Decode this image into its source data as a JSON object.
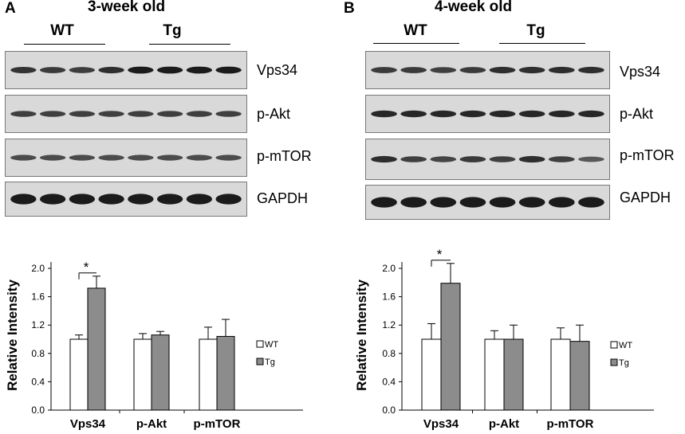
{
  "panels": [
    {
      "letter": "A",
      "title": "3-week old",
      "groups": [
        "WT",
        "Tg"
      ],
      "blots": [
        "Vps34",
        "p-Akt",
        "p-mTOR",
        "GAPDH"
      ],
      "chart": {
        "ylabel": "Relative Intensity",
        "star": "*"
      }
    },
    {
      "letter": "B",
      "title": "4-week old",
      "groups": [
        "WT",
        "Tg"
      ],
      "blots": [
        "Vps34",
        "p-Akt",
        "p-mTOR",
        "GAPDH"
      ],
      "chart": {
        "ylabel": "Relative Intensity",
        "star": "*"
      }
    }
  ],
  "chart_data": [
    {
      "type": "bar",
      "categories": [
        "Vps34",
        "p-Akt",
        "p-mTOR"
      ],
      "series": [
        {
          "name": "WT",
          "values": [
            1.0,
            1.0,
            1.0
          ],
          "errors": [
            0.06,
            0.08,
            0.17
          ],
          "color": "#ffffff"
        },
        {
          "name": "Tg",
          "values": [
            1.72,
            1.06,
            1.04
          ],
          "errors": [
            0.17,
            0.05,
            0.24
          ],
          "color": "#8c8c8c"
        }
      ],
      "ylabel": "Relative Intensity",
      "ylim": [
        0,
        2.0
      ],
      "yticks": [
        "0.0",
        "0.4",
        "0.8",
        "1.2",
        "1.6",
        "2.0"
      ],
      "legend": "right",
      "grid": false
    },
    {
      "type": "bar",
      "categories": [
        "Vps34",
        "p-Akt",
        "p-mTOR"
      ],
      "series": [
        {
          "name": "WT",
          "values": [
            1.0,
            1.0,
            1.0
          ],
          "errors": [
            0.22,
            0.12,
            0.16
          ],
          "color": "#ffffff"
        },
        {
          "name": "Tg",
          "values": [
            1.79,
            1.0,
            0.97
          ],
          "errors": [
            0.28,
            0.2,
            0.23
          ],
          "color": "#8c8c8c"
        }
      ],
      "ylabel": "Relative Intensity",
      "ylim": [
        0,
        2.0
      ],
      "yticks": [
        "0.0",
        "0.4",
        "0.8",
        "1.2",
        "1.6",
        "2.0"
      ],
      "legend": "right",
      "grid": false
    }
  ],
  "band_intensity": [
    [
      [
        0.8,
        0.75,
        0.72,
        0.85,
        1.0,
        1.0,
        1.0,
        1.0
      ],
      [
        0.7,
        0.7,
        0.7,
        0.7,
        0.7,
        0.7,
        0.7,
        0.7
      ],
      [
        0.6,
        0.6,
        0.6,
        0.6,
        0.6,
        0.6,
        0.6,
        0.6
      ],
      [
        1.0,
        1.0,
        1.0,
        1.0,
        1.0,
        1.0,
        1.0,
        1.0
      ]
    ],
    [
      [
        0.75,
        0.75,
        0.7,
        0.75,
        0.85,
        0.85,
        0.85,
        0.85
      ],
      [
        0.9,
        0.9,
        0.9,
        0.9,
        0.9,
        0.9,
        0.9,
        0.9
      ],
      [
        0.85,
        0.7,
        0.65,
        0.75,
        0.7,
        0.85,
        0.7,
        0.5
      ],
      [
        1.0,
        1.0,
        1.0,
        1.0,
        1.0,
        1.0,
        1.0,
        1.0
      ]
    ]
  ]
}
